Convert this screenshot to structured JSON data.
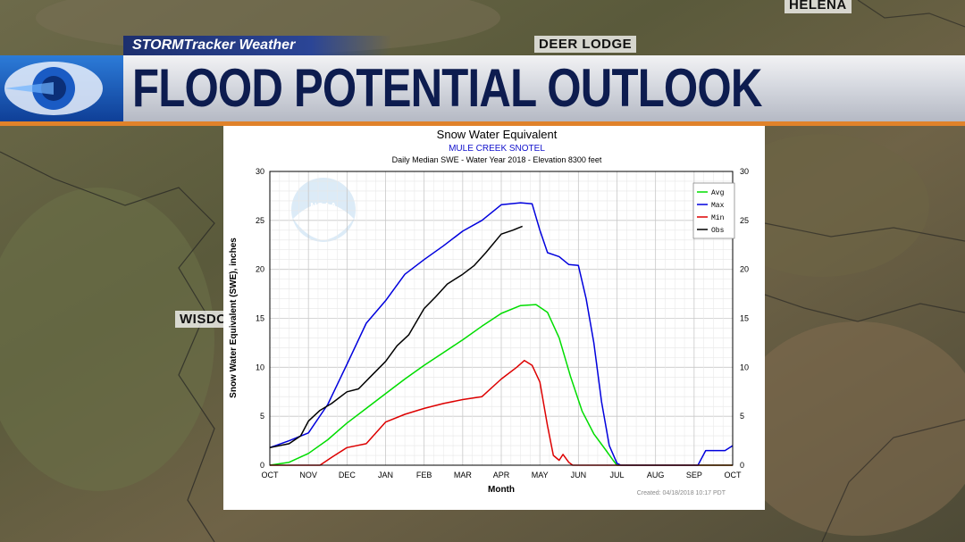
{
  "overlay": {
    "brand": "STORMTracker Weather",
    "headline": "FLOOD POTENTIAL OUTLOOK",
    "cities": [
      "HELENA",
      "DEER LODGE",
      "WISDO"
    ]
  },
  "colors": {
    "avg": "#00dd00",
    "max": "#0000dd",
    "min": "#dd0000",
    "obs": "#000000",
    "brand_blue": "#1d2f6e",
    "accent_orange": "#e0822a"
  },
  "chart_data": {
    "type": "line",
    "title": "Snow Water Equivalent",
    "subtitle": "MULE CREEK SNOTEL",
    "subtitle2": "Daily Median SWE - Water Year 2018 -  Elevation 8300 feet",
    "xlabel": "Month",
    "ylabel": "Snow Water Equivalent (SWE),  inches",
    "ylim": [
      0,
      30
    ],
    "xlim": [
      0,
      12
    ],
    "yticks": [
      0,
      5,
      10,
      15,
      20,
      25,
      30
    ],
    "categories": [
      "OCT",
      "NOV",
      "DEC",
      "JAN",
      "FEB",
      "MAR",
      "APR",
      "MAY",
      "JUN",
      "JUL",
      "AUG",
      "SEP",
      "OCT"
    ],
    "legend": [
      "Avg",
      "Max",
      "Min",
      "Obs"
    ],
    "legend_position": "top-right",
    "grid": true,
    "footer": "Created:  04/18/2018 10:17 PDT",
    "series": [
      {
        "name": "Avg",
        "x": [
          0,
          0.5,
          1,
          1.5,
          2,
          2.5,
          3,
          3.5,
          4,
          4.5,
          5,
          5.5,
          6,
          6.5,
          6.9,
          7.2,
          7.5,
          7.8,
          8.1,
          8.4,
          8.7,
          8.9,
          9,
          10,
          11,
          12
        ],
        "y": [
          0,
          0.3,
          1.2,
          2.6,
          4.3,
          5.8,
          7.3,
          8.8,
          10.2,
          11.5,
          12.8,
          14.2,
          15.5,
          16.3,
          16.4,
          15.6,
          13.0,
          9.0,
          5.5,
          3.2,
          1.6,
          0.5,
          0,
          0,
          0,
          0
        ]
      },
      {
        "name": "Max",
        "x": [
          0,
          0.5,
          1,
          1.5,
          2,
          2.5,
          3,
          3.5,
          4,
          4.5,
          5,
          5.5,
          6,
          6.5,
          6.8,
          7.0,
          7.2,
          7.35,
          7.5,
          7.75,
          8,
          8.2,
          8.4,
          8.6,
          8.8,
          9.0,
          9.1,
          11.1,
          11.3,
          11.8,
          12
        ],
        "y": [
          1.8,
          2.5,
          3.3,
          6.2,
          10.3,
          14.5,
          16.8,
          19.5,
          21.0,
          22.4,
          23.9,
          25.0,
          26.6,
          26.8,
          26.7,
          24.0,
          21.7,
          21.5,
          21.3,
          20.5,
          20.4,
          17.0,
          12.5,
          6.5,
          2.0,
          0.2,
          0,
          0,
          1.5,
          1.5,
          2.0
        ]
      },
      {
        "name": "Min",
        "x": [
          0,
          1.3,
          1.6,
          2,
          2.5,
          3,
          3.5,
          4,
          4.5,
          5,
          5.5,
          6,
          6.4,
          6.6,
          6.8,
          7.0,
          7.2,
          7.35,
          7.5,
          7.6,
          7.75,
          7.85,
          12
        ],
        "y": [
          0,
          0,
          0.8,
          1.8,
          2.2,
          4.4,
          5.2,
          5.8,
          6.3,
          6.7,
          7.0,
          8.8,
          10.0,
          10.7,
          10.2,
          8.5,
          4.0,
          1.0,
          0.5,
          1.1,
          0.3,
          0,
          0
        ]
      },
      {
        "name": "Obs",
        "x": [
          0,
          0.5,
          0.8,
          1.0,
          1.3,
          1.6,
          2.0,
          2.3,
          2.6,
          3.0,
          3.3,
          3.6,
          4.0,
          4.3,
          4.6,
          5.0,
          5.3,
          5.6,
          6.0,
          6.3,
          6.55
        ],
        "y": [
          1.8,
          2.2,
          3.0,
          4.5,
          5.6,
          6.3,
          7.5,
          7.8,
          9.0,
          10.6,
          12.2,
          13.3,
          16.0,
          17.2,
          18.5,
          19.5,
          20.4,
          21.7,
          23.6,
          24.0,
          24.4
        ]
      }
    ]
  }
}
